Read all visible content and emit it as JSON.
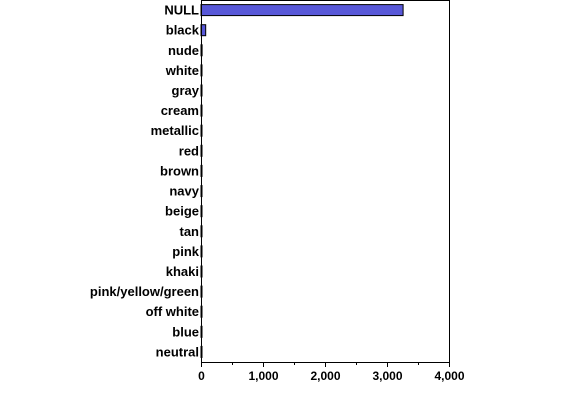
{
  "chart_data": {
    "type": "bar",
    "orientation": "horizontal",
    "categories": [
      "NULL",
      "black",
      "nude",
      "white",
      "gray",
      "cream",
      "metallic",
      "red",
      "brown",
      "navy",
      "beige",
      "tan",
      "pink",
      "khaki",
      "pink/yellow/green",
      "off white",
      "blue",
      "neutral"
    ],
    "values": [
      3260,
      75,
      18,
      10,
      8,
      6,
      5,
      4,
      3,
      3,
      2,
      2,
      2,
      1,
      1,
      1,
      1,
      1
    ],
    "xlim": [
      0,
      4000
    ],
    "xticks": [
      0,
      1000,
      2000,
      3000,
      4000
    ],
    "xtick_labels": [
      "0",
      "1,000",
      "2,000",
      "3,000",
      "4,000"
    ],
    "grid": false,
    "colors": {
      "bar_fill": "#5858d8",
      "bar_stroke": "#000000",
      "axis": "#000000",
      "background": "#ffffff"
    }
  }
}
